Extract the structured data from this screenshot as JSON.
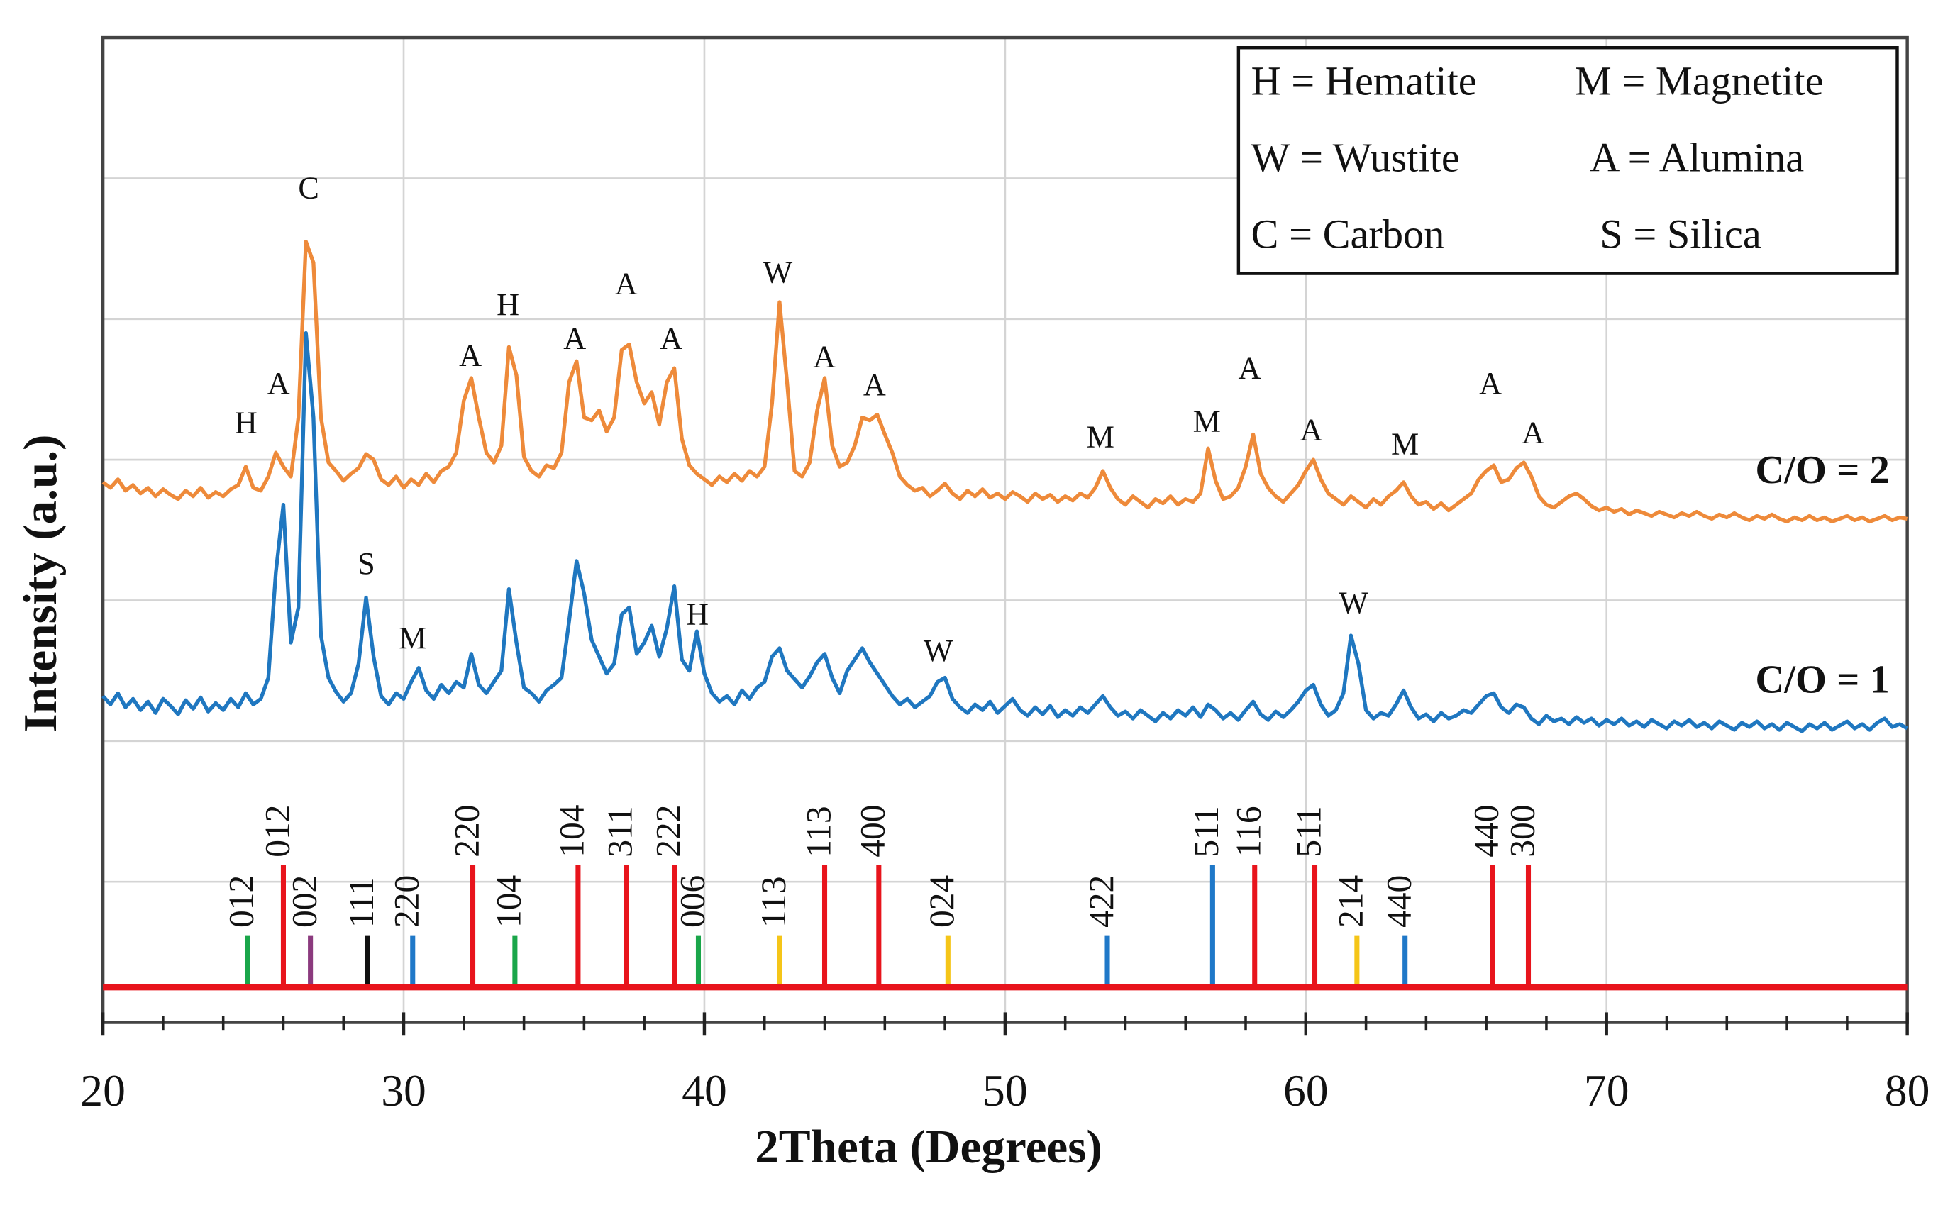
{
  "chart_data": {
    "type": "line",
    "xlabel": "2Theta (Degrees)",
    "ylabel": "Intensity (a.u.)",
    "xlim": [
      20,
      80
    ],
    "xticks": [
      20,
      30,
      40,
      50,
      60,
      70,
      80
    ],
    "xminorticks": [
      22,
      24,
      26,
      28,
      32,
      34,
      36,
      38,
      42,
      44,
      46,
      48,
      52,
      54,
      56,
      58,
      62,
      64,
      66,
      68,
      72,
      74,
      76,
      78
    ],
    "ylim": [
      0,
      7
    ],
    "yticks": [
      0,
      1,
      2,
      3,
      4,
      5,
      6,
      7
    ],
    "grid": true,
    "legend": "upper right",
    "phase_key": [
      "H = Hematite",
      "M = Magnetite",
      "W = Wustite",
      "A = Alumina",
      "C  = Carbon",
      "S = Silica"
    ],
    "x": [
      20,
      20.25,
      20.5,
      20.75,
      21,
      21.25,
      21.5,
      21.75,
      22,
      22.25,
      22.5,
      22.75,
      23,
      23.25,
      23.5,
      23.75,
      24,
      24.25,
      24.5,
      24.75,
      25,
      25.25,
      25.5,
      25.75,
      26,
      26.25,
      26.5,
      26.75,
      27,
      27.25,
      27.5,
      27.75,
      28,
      28.25,
      28.5,
      28.75,
      29,
      29.25,
      29.5,
      29.75,
      30,
      30.25,
      30.5,
      30.75,
      31,
      31.25,
      31.5,
      31.75,
      32,
      32.25,
      32.5,
      32.75,
      33,
      33.25,
      33.5,
      33.75,
      34,
      34.25,
      34.5,
      34.75,
      35,
      35.25,
      35.5,
      35.75,
      36,
      36.25,
      36.5,
      36.75,
      37,
      37.25,
      37.5,
      37.75,
      38,
      38.25,
      38.5,
      38.75,
      39,
      39.25,
      39.5,
      39.75,
      40,
      40.25,
      40.5,
      40.75,
      41,
      41.25,
      41.5,
      41.75,
      42,
      42.25,
      42.5,
      42.75,
      43,
      43.25,
      43.5,
      43.75,
      44,
      44.25,
      44.5,
      44.75,
      45,
      45.25,
      45.5,
      45.75,
      46,
      46.25,
      46.5,
      46.75,
      47,
      47.25,
      47.5,
      47.75,
      48,
      48.25,
      48.5,
      48.75,
      49,
      49.25,
      49.5,
      49.75,
      50,
      50.25,
      50.5,
      50.75,
      51,
      51.25,
      51.5,
      51.75,
      52,
      52.25,
      52.5,
      52.75,
      53,
      53.25,
      53.5,
      53.75,
      54,
      54.25,
      54.5,
      54.75,
      55,
      55.25,
      55.5,
      55.75,
      56,
      56.25,
      56.5,
      56.75,
      57,
      57.25,
      57.5,
      57.75,
      58,
      58.25,
      58.5,
      58.75,
      59,
      59.25,
      59.5,
      59.75,
      60,
      60.25,
      60.5,
      60.75,
      61,
      61.25,
      61.5,
      61.75,
      62,
      62.25,
      62.5,
      62.75,
      63,
      63.25,
      63.5,
      63.75,
      64,
      64.25,
      64.5,
      64.75,
      65,
      65.25,
      65.5,
      65.75,
      66,
      66.25,
      66.5,
      66.75,
      67,
      67.25,
      67.5,
      67.75,
      68,
      68.25,
      68.5,
      68.75,
      69,
      69.25,
      69.5,
      69.75,
      70,
      70.25,
      70.5,
      70.75,
      71,
      71.25,
      71.5,
      71.75,
      72,
      72.25,
      72.5,
      72.75,
      73,
      73.25,
      73.5,
      73.75,
      74,
      74.25,
      74.5,
      74.75,
      75,
      75.25,
      75.5,
      75.75,
      76,
      76.25,
      76.5,
      76.75,
      77,
      77.25,
      77.5,
      77.75,
      78,
      78.25,
      78.5,
      78.75,
      79,
      79.25,
      79.5,
      79.75,
      80
    ],
    "series": [
      {
        "name": "C/O = 2",
        "color": "#ee8a3a",
        "values": [
          3.84,
          3.8,
          3.86,
          3.78,
          3.82,
          3.76,
          3.8,
          3.74,
          3.79,
          3.75,
          3.72,
          3.78,
          3.74,
          3.8,
          3.73,
          3.77,
          3.74,
          3.79,
          3.82,
          3.95,
          3.8,
          3.78,
          3.88,
          4.05,
          3.95,
          3.88,
          4.3,
          5.55,
          5.4,
          4.3,
          3.98,
          3.92,
          3.85,
          3.9,
          3.94,
          4.04,
          4.0,
          3.86,
          3.82,
          3.88,
          3.8,
          3.86,
          3.82,
          3.9,
          3.84,
          3.92,
          3.95,
          4.05,
          4.42,
          4.58,
          4.3,
          4.05,
          3.98,
          4.1,
          4.8,
          4.6,
          4.02,
          3.92,
          3.88,
          3.96,
          3.94,
          4.05,
          4.55,
          4.7,
          4.3,
          4.28,
          4.35,
          4.2,
          4.3,
          4.78,
          4.82,
          4.55,
          4.4,
          4.48,
          4.25,
          4.55,
          4.65,
          4.15,
          3.96,
          3.9,
          3.86,
          3.82,
          3.88,
          3.84,
          3.9,
          3.85,
          3.92,
          3.88,
          3.95,
          4.4,
          5.12,
          4.55,
          3.92,
          3.88,
          3.98,
          4.35,
          4.58,
          4.1,
          3.95,
          3.98,
          4.1,
          4.3,
          4.28,
          4.32,
          4.18,
          4.05,
          3.88,
          3.82,
          3.78,
          3.8,
          3.74,
          3.78,
          3.83,
          3.76,
          3.72,
          3.78,
          3.74,
          3.79,
          3.73,
          3.76,
          3.72,
          3.77,
          3.74,
          3.7,
          3.76,
          3.72,
          3.75,
          3.7,
          3.74,
          3.71,
          3.76,
          3.73,
          3.8,
          3.92,
          3.8,
          3.72,
          3.68,
          3.74,
          3.7,
          3.66,
          3.72,
          3.69,
          3.74,
          3.68,
          3.72,
          3.7,
          3.76,
          4.08,
          3.85,
          3.72,
          3.74,
          3.8,
          3.95,
          4.18,
          3.9,
          3.8,
          3.74,
          3.7,
          3.76,
          3.82,
          3.92,
          4.0,
          3.86,
          3.76,
          3.72,
          3.68,
          3.74,
          3.7,
          3.66,
          3.72,
          3.68,
          3.74,
          3.78,
          3.84,
          3.74,
          3.68,
          3.7,
          3.65,
          3.69,
          3.64,
          3.68,
          3.72,
          3.76,
          3.86,
          3.92,
          3.96,
          3.84,
          3.86,
          3.94,
          3.98,
          3.88,
          3.74,
          3.68,
          3.66,
          3.7,
          3.74,
          3.76,
          3.72,
          3.67,
          3.64,
          3.66,
          3.63,
          3.65,
          3.61,
          3.64,
          3.62,
          3.6,
          3.63,
          3.61,
          3.59,
          3.62,
          3.6,
          3.63,
          3.6,
          3.58,
          3.61,
          3.59,
          3.62,
          3.59,
          3.57,
          3.6,
          3.58,
          3.61,
          3.58,
          3.56,
          3.59,
          3.57,
          3.6,
          3.57,
          3.59,
          3.56,
          3.58,
          3.6,
          3.57,
          3.59,
          3.56,
          3.58,
          3.6,
          3.57,
          3.59,
          3.58
        ]
      },
      {
        "name": "C/O = 1",
        "color": "#1f77c0",
        "values": [
          2.32,
          2.26,
          2.34,
          2.24,
          2.3,
          2.22,
          2.28,
          2.2,
          2.3,
          2.25,
          2.19,
          2.29,
          2.23,
          2.31,
          2.21,
          2.27,
          2.22,
          2.3,
          2.24,
          2.34,
          2.26,
          2.3,
          2.45,
          3.2,
          3.68,
          2.7,
          2.95,
          4.9,
          4.3,
          2.75,
          2.45,
          2.35,
          2.28,
          2.34,
          2.55,
          3.02,
          2.6,
          2.32,
          2.26,
          2.34,
          2.3,
          2.42,
          2.52,
          2.36,
          2.3,
          2.4,
          2.34,
          2.42,
          2.38,
          2.62,
          2.4,
          2.34,
          2.42,
          2.5,
          3.08,
          2.7,
          2.38,
          2.34,
          2.28,
          2.36,
          2.4,
          2.45,
          2.85,
          3.28,
          3.05,
          2.72,
          2.6,
          2.48,
          2.55,
          2.9,
          2.95,
          2.62,
          2.7,
          2.82,
          2.6,
          2.8,
          3.1,
          2.58,
          2.5,
          2.78,
          2.48,
          2.34,
          2.28,
          2.32,
          2.26,
          2.36,
          2.3,
          2.38,
          2.42,
          2.6,
          2.66,
          2.5,
          2.44,
          2.38,
          2.46,
          2.56,
          2.62,
          2.45,
          2.34,
          2.5,
          2.58,
          2.66,
          2.56,
          2.48,
          2.4,
          2.32,
          2.26,
          2.3,
          2.24,
          2.28,
          2.32,
          2.42,
          2.45,
          2.3,
          2.24,
          2.2,
          2.26,
          2.22,
          2.28,
          2.2,
          2.25,
          2.3,
          2.22,
          2.18,
          2.24,
          2.19,
          2.25,
          2.17,
          2.22,
          2.18,
          2.24,
          2.2,
          2.26,
          2.32,
          2.24,
          2.18,
          2.21,
          2.16,
          2.22,
          2.18,
          2.14,
          2.2,
          2.16,
          2.22,
          2.18,
          2.24,
          2.17,
          2.26,
          2.22,
          2.16,
          2.2,
          2.15,
          2.22,
          2.28,
          2.19,
          2.15,
          2.21,
          2.17,
          2.22,
          2.28,
          2.36,
          2.4,
          2.26,
          2.18,
          2.22,
          2.34,
          2.75,
          2.55,
          2.22,
          2.16,
          2.2,
          2.18,
          2.26,
          2.36,
          2.24,
          2.16,
          2.19,
          2.14,
          2.2,
          2.16,
          2.18,
          2.22,
          2.2,
          2.26,
          2.32,
          2.34,
          2.24,
          2.2,
          2.26,
          2.24,
          2.16,
          2.12,
          2.18,
          2.14,
          2.16,
          2.12,
          2.17,
          2.13,
          2.16,
          2.11,
          2.15,
          2.12,
          2.16,
          2.11,
          2.14,
          2.1,
          2.15,
          2.12,
          2.09,
          2.14,
          2.11,
          2.15,
          2.1,
          2.13,
          2.09,
          2.14,
          2.11,
          2.08,
          2.13,
          2.1,
          2.14,
          2.09,
          2.12,
          2.08,
          2.13,
          2.1,
          2.07,
          2.12,
          2.09,
          2.13,
          2.08,
          2.11,
          2.14,
          2.09,
          2.12,
          2.08,
          2.13,
          2.16,
          2.1,
          2.12,
          2.09
        ]
      }
    ],
    "reference_pattern": {
      "baseline": 0.25,
      "color": "#e8141c",
      "x": [
        24.8,
        26.0,
        26.9,
        28.8,
        30.3,
        32.3,
        33.7,
        35.8,
        37.4,
        39.0,
        39.8,
        42.5,
        44.0,
        45.8,
        48.1,
        53.4,
        56.9,
        58.3,
        60.3,
        61.7,
        63.3,
        66.2,
        67.4
      ],
      "values": [
        0.62,
        1.12,
        0.62,
        0.62,
        0.62,
        1.12,
        0.62,
        1.12,
        1.12,
        1.12,
        0.62,
        0.62,
        1.12,
        1.12,
        0.62,
        0.62,
        1.12,
        1.12,
        1.12,
        0.62,
        0.62,
        1.12,
        1.12
      ],
      "labels": [
        "012",
        "012",
        "002",
        "111",
        "220",
        "220",
        "104",
        "104",
        "311",
        "222",
        "006",
        "113",
        "113",
        "400",
        "024",
        "422",
        "511",
        "116",
        "511",
        "214",
        "440",
        "440",
        "300"
      ],
      "colors": [
        "#1aa64a",
        "#e8141c",
        "#8b3a7e",
        "#111111",
        "#1f78c8",
        "#e8141c",
        "#1aa64a",
        "#e8141c",
        "#e8141c",
        "#e8141c",
        "#1aa64a",
        "#f5c518",
        "#e8141c",
        "#e8141c",
        "#f5c518",
        "#1f78c8",
        "#1f78c8",
        "#e8141c",
        "#e8141c",
        "#f5c518",
        "#1f78c8",
        "#e8141c",
        "#e8141c"
      ]
    },
    "annotations": [
      {
        "text": "H",
        "x": 24.76,
        "y": 4.24
      },
      {
        "text": "A",
        "x": 25.84,
        "y": 4.52
      },
      {
        "text": "C",
        "x": 26.84,
        "y": 5.91
      },
      {
        "text": "A",
        "x": 32.22,
        "y": 4.72
      },
      {
        "text": "H",
        "x": 33.47,
        "y": 5.08
      },
      {
        "text": "A",
        "x": 35.69,
        "y": 4.84
      },
      {
        "text": "A",
        "x": 37.4,
        "y": 5.23
      },
      {
        "text": "A",
        "x": 38.9,
        "y": 4.84
      },
      {
        "text": "W",
        "x": 42.44,
        "y": 5.31
      },
      {
        "text": "A",
        "x": 43.99,
        "y": 4.71
      },
      {
        "text": "A",
        "x": 45.66,
        "y": 4.51
      },
      {
        "text": "M",
        "x": 53.17,
        "y": 4.14
      },
      {
        "text": "M",
        "x": 56.71,
        "y": 4.25
      },
      {
        "text": "A",
        "x": 58.13,
        "y": 4.63
      },
      {
        "text": "A",
        "x": 60.18,
        "y": 4.19
      },
      {
        "text": "M",
        "x": 63.3,
        "y": 4.09
      },
      {
        "text": "A",
        "x": 66.14,
        "y": 4.52
      },
      {
        "text": "A",
        "x": 67.56,
        "y": 4.17
      },
      {
        "text": "S",
        "x": 28.76,
        "y": 3.24
      },
      {
        "text": "M",
        "x": 30.3,
        "y": 2.71
      },
      {
        "text": "H",
        "x": 39.77,
        "y": 2.88
      },
      {
        "text": "W",
        "x": 47.78,
        "y": 2.62
      },
      {
        "text": "W",
        "x": 61.59,
        "y": 2.96
      }
    ]
  }
}
